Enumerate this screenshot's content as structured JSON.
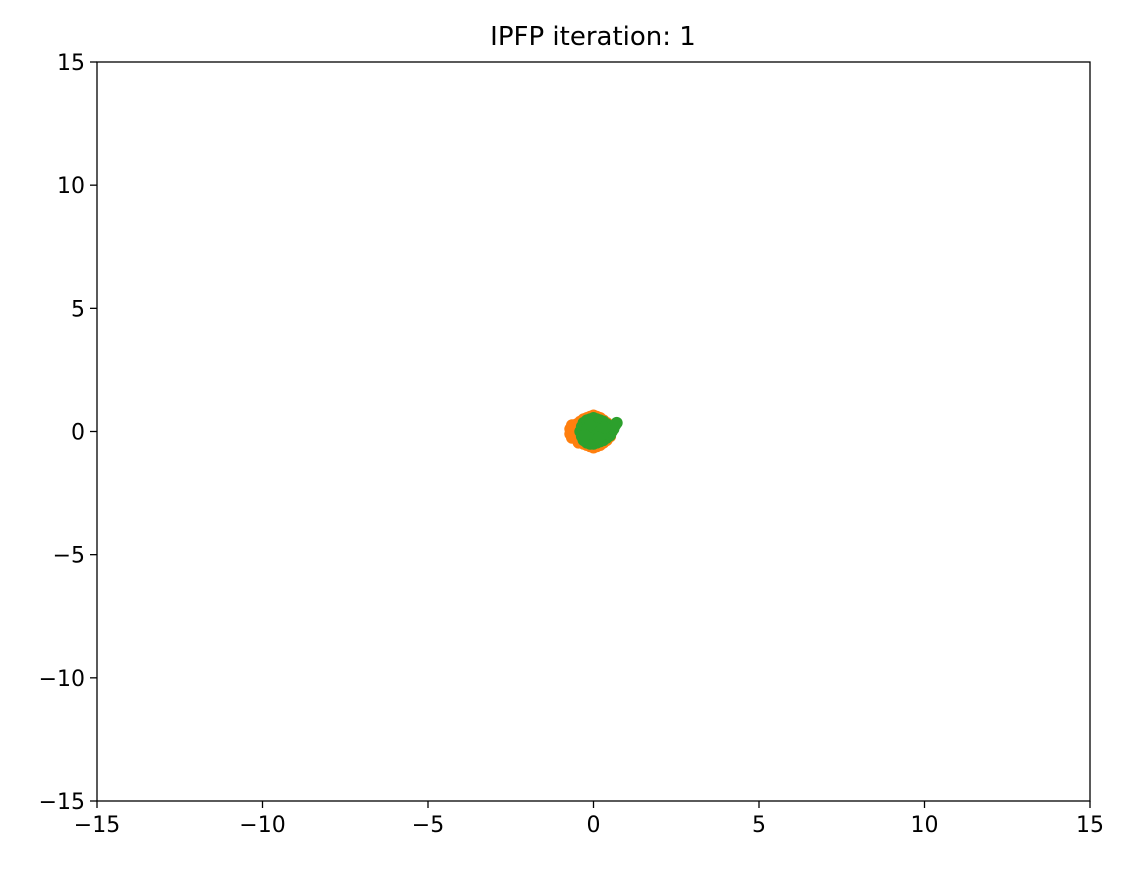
{
  "chart_data": {
    "type": "scatter",
    "title": "IPFP iteration: 1",
    "xlabel": "",
    "ylabel": "",
    "xlim": [
      -15,
      15
    ],
    "ylim": [
      -15,
      15
    ],
    "xticks": [
      -15,
      -10,
      -5,
      0,
      5,
      10,
      15
    ],
    "yticks": [
      -15,
      -10,
      -5,
      0,
      5,
      10,
      15
    ],
    "xtick_labels": [
      "−15",
      "−10",
      "−5",
      "0",
      "5",
      "10",
      "15"
    ],
    "ytick_labels": [
      "−15",
      "−10",
      "−5",
      "0",
      "5",
      "10",
      "15"
    ],
    "grid": false,
    "legend": "none",
    "series": [
      {
        "color": "#ff7f0e",
        "points": [
          [
            -0.6,
            0.0
          ],
          [
            -0.55,
            0.15
          ],
          [
            -0.55,
            -0.15
          ],
          [
            -0.5,
            0.3
          ],
          [
            -0.5,
            -0.3
          ],
          [
            -0.45,
            0.05
          ],
          [
            -0.4,
            0.4
          ],
          [
            -0.4,
            -0.4
          ],
          [
            -0.35,
            0.2
          ],
          [
            -0.35,
            -0.2
          ],
          [
            -0.3,
            0.5
          ],
          [
            -0.3,
            -0.5
          ],
          [
            -0.25,
            0.0
          ],
          [
            -0.2,
            0.55
          ],
          [
            -0.2,
            -0.55
          ],
          [
            -0.15,
            0.35
          ],
          [
            -0.15,
            -0.35
          ],
          [
            -0.1,
            0.6
          ],
          [
            -0.1,
            -0.6
          ],
          [
            0.0,
            0.65
          ],
          [
            0.0,
            -0.65
          ],
          [
            0.1,
            0.6
          ],
          [
            0.1,
            -0.6
          ],
          [
            0.2,
            0.55
          ],
          [
            0.2,
            -0.55
          ],
          [
            0.3,
            0.45
          ],
          [
            0.3,
            -0.45
          ],
          [
            0.4,
            0.35
          ],
          [
            0.4,
            -0.35
          ],
          [
            0.5,
            0.2
          ],
          [
            0.5,
            -0.2
          ],
          [
            0.55,
            0.0
          ],
          [
            -0.7,
            0.1
          ],
          [
            -0.7,
            -0.1
          ],
          [
            -0.65,
            0.25
          ],
          [
            -0.65,
            -0.25
          ],
          [
            0.05,
            0.0
          ],
          [
            -0.05,
            0.1
          ],
          [
            0.15,
            -0.1
          ],
          [
            -0.45,
            -0.45
          ]
        ]
      },
      {
        "color": "#2ca02c",
        "points": [
          [
            -0.4,
            0.0
          ],
          [
            -0.35,
            0.2
          ],
          [
            -0.35,
            -0.2
          ],
          [
            -0.3,
            0.35
          ],
          [
            -0.3,
            -0.35
          ],
          [
            -0.2,
            0.45
          ],
          [
            -0.2,
            -0.45
          ],
          [
            -0.1,
            0.5
          ],
          [
            -0.1,
            -0.5
          ],
          [
            0.0,
            0.55
          ],
          [
            0.0,
            -0.5
          ],
          [
            0.1,
            0.5
          ],
          [
            0.1,
            -0.45
          ],
          [
            0.2,
            0.45
          ],
          [
            0.2,
            -0.4
          ],
          [
            0.3,
            0.4
          ],
          [
            0.3,
            -0.35
          ],
          [
            0.4,
            0.3
          ],
          [
            0.4,
            -0.25
          ],
          [
            0.5,
            0.2
          ],
          [
            0.5,
            -0.15
          ],
          [
            0.55,
            0.0
          ],
          [
            0.6,
            0.1
          ],
          [
            0.7,
            0.35
          ],
          [
            0.65,
            0.25
          ],
          [
            0.0,
            0.0
          ],
          [
            0.1,
            0.1
          ],
          [
            -0.1,
            -0.1
          ],
          [
            0.2,
            0.0
          ],
          [
            -0.2,
            0.1
          ],
          [
            0.3,
            -0.1
          ],
          [
            -0.1,
            0.25
          ],
          [
            0.15,
            -0.25
          ],
          [
            0.35,
            0.15
          ],
          [
            -0.25,
            -0.15
          ]
        ]
      }
    ]
  }
}
